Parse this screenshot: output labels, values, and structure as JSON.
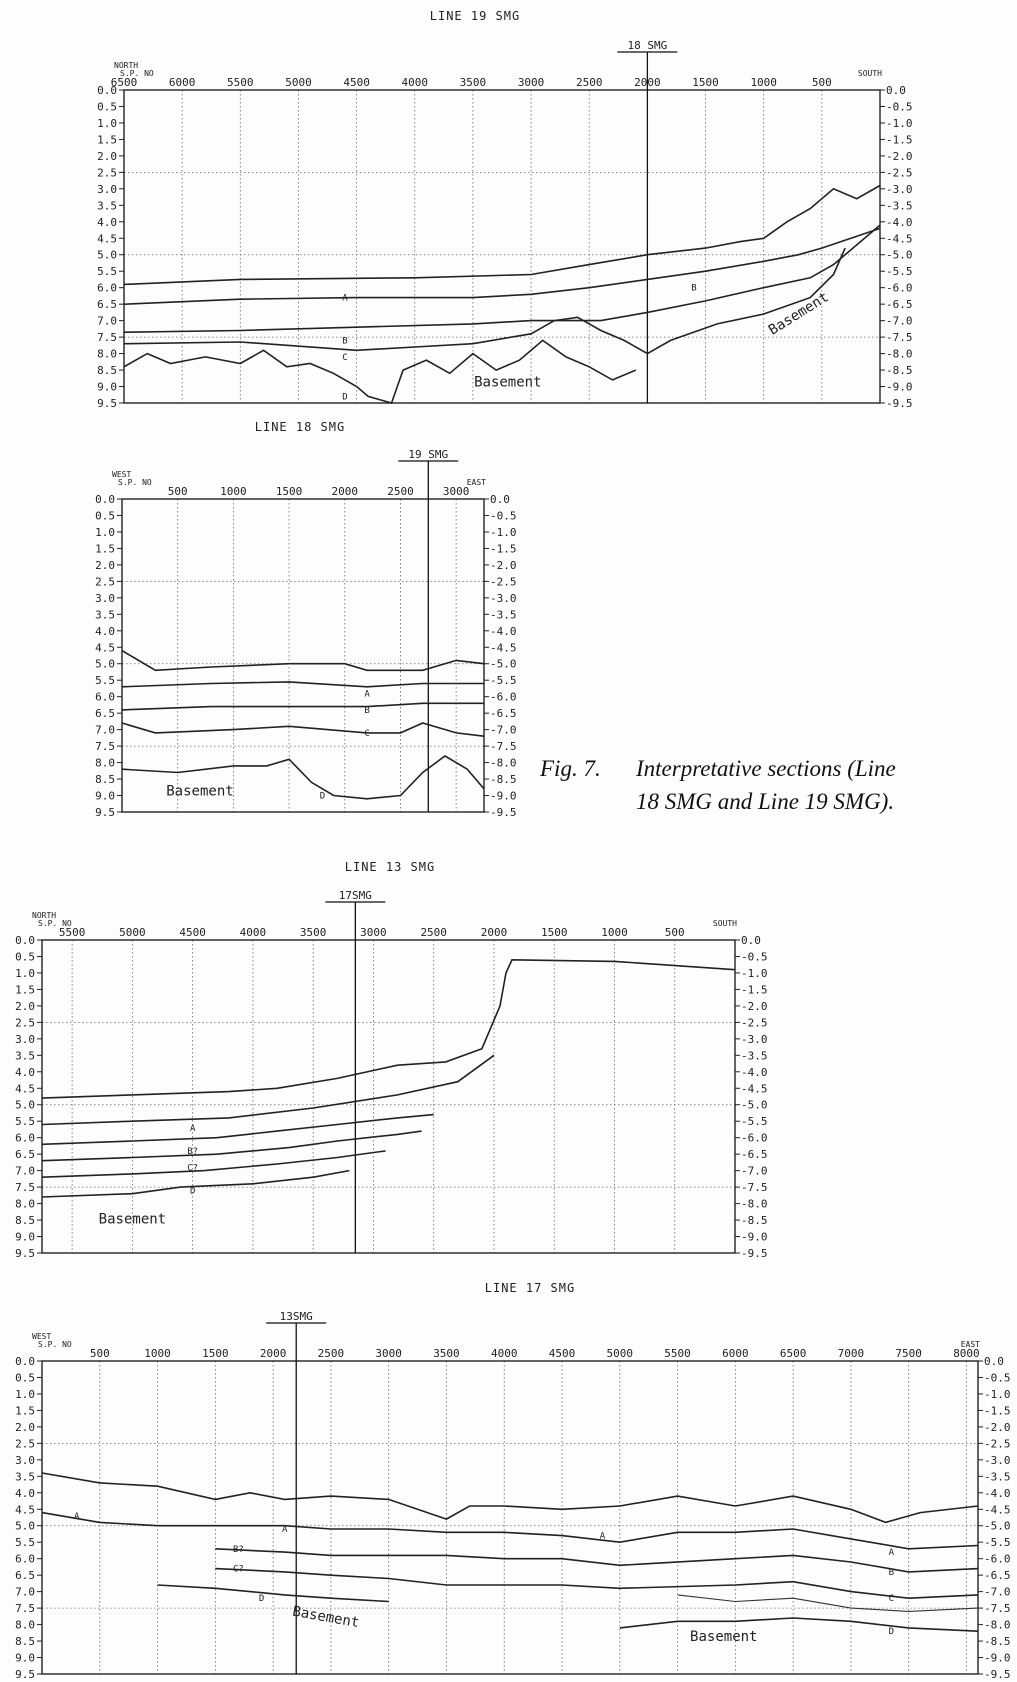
{
  "figure": {
    "caption_num": "Fig. 7.",
    "caption_l1": "Interpretative sections (Line",
    "caption_l2": "18 SMG and Line 19 SMG)."
  },
  "sections": [
    {
      "id": "line19",
      "title": "LINE 19 SMG",
      "left_dir": "NORTH",
      "right_dir": "SOUTH",
      "sp_label": "S.P. NO",
      "cross": "18 SMG",
      "cross_sp": 2000,
      "sp_start": 6500,
      "sp_end": 0,
      "sp_ticks": [
        "6500",
        "6000",
        "5500",
        "5000",
        "4500",
        "4000",
        "3500",
        "3000",
        "2500",
        "2000",
        "1500",
        "1000",
        "500"
      ],
      "sp_values": [
        6500,
        6000,
        5500,
        5000,
        4500,
        4000,
        3500,
        3000,
        2500,
        2000,
        1500,
        1000,
        500
      ],
      "depth_ticks_left": [
        "0.0",
        "0.5",
        "1.0",
        "1.5",
        "2.0",
        "2.5",
        "3.0",
        "3.5",
        "4.0",
        "4.5",
        "5.0",
        "5.5",
        "6.0",
        "6.5",
        "7.0",
        "7.5",
        "8.0",
        "8.5",
        "9.0",
        "9.5"
      ],
      "depth_ticks_right": [
        "0.0",
        "-0.5",
        "-1.0",
        "-1.5",
        "-2.0",
        "-2.5",
        "-3.0",
        "-3.5",
        "-4.0",
        "-4.5",
        "-5.0",
        "-5.5",
        "-6.0",
        "-6.5",
        "-7.0",
        "-7.5",
        "-8.0",
        "-8.5",
        "-9.0",
        "-9.5"
      ],
      "horizon_labels": [
        {
          "text": "A",
          "sp": 4600,
          "depth": 6.3
        },
        {
          "text": "B",
          "sp": 4600,
          "depth": 7.6
        },
        {
          "text": "C",
          "sp": 4600,
          "depth": 8.1
        },
        {
          "text": "D",
          "sp": 4600,
          "depth": 9.3
        },
        {
          "text": "B",
          "sp": 1600,
          "depth": 6.0
        }
      ],
      "basement_labels": [
        {
          "text": "Basement",
          "sp": 3200,
          "depth": 9.0,
          "rot": 0
        },
        {
          "text": "Basement",
          "sp": 680,
          "depth": 6.9,
          "rot": -32
        }
      ]
    },
    {
      "id": "line18",
      "title": "LINE 18 SMG",
      "left_dir": "WEST",
      "right_dir": "EAST",
      "sp_label": "S.P. NO",
      "cross": "19 SMG",
      "cross_sp": 2750,
      "sp_start": 0,
      "sp_end": 3250,
      "sp_ticks": [
        "500",
        "1000",
        "1500",
        "2000",
        "2500",
        "3000"
      ],
      "sp_values": [
        500,
        1000,
        1500,
        2000,
        2500,
        3000
      ],
      "depth_ticks_left": [
        "0.0",
        "0.5",
        "1.0",
        "1.5",
        "2.0",
        "2.5",
        "3.0",
        "3.5",
        "4.0",
        "4.5",
        "5.0",
        "5.5",
        "6.0",
        "6.5",
        "7.0",
        "7.5",
        "8.0",
        "8.5",
        "9.0",
        "9.5"
      ],
      "depth_ticks_right": [
        "0.0",
        "-0.5",
        "-1.0",
        "-1.5",
        "-2.0",
        "-2.5",
        "-3.0",
        "-3.5",
        "-4.0",
        "-4.5",
        "-5.0",
        "-5.5",
        "-6.0",
        "-6.5",
        "-7.0",
        "-7.5",
        "-8.0",
        "-8.5",
        "-9.0",
        "-9.5"
      ],
      "horizon_labels": [
        {
          "text": "A",
          "sp": 2200,
          "depth": 5.9
        },
        {
          "text": "B",
          "sp": 2200,
          "depth": 6.4
        },
        {
          "text": "C",
          "sp": 2200,
          "depth": 7.1
        },
        {
          "text": "D",
          "sp": 1800,
          "depth": 9.0
        }
      ],
      "basement_labels": [
        {
          "text": "Basement",
          "sp": 700,
          "depth": 9.0,
          "rot": 0
        }
      ]
    },
    {
      "id": "line13",
      "title": "LINE 13 SMG",
      "left_dir": "NORTH",
      "right_dir": "SOUTH",
      "sp_label": "S.P. NO",
      "cross": "17SMG",
      "cross_sp": 3150,
      "sp_start": 5750,
      "sp_end": 0,
      "sp_ticks": [
        "5500",
        "5000",
        "4500",
        "4000",
        "3500",
        "3000",
        "2500",
        "2000",
        "1500",
        "1000",
        "500"
      ],
      "sp_values": [
        5500,
        5000,
        4500,
        4000,
        3500,
        3000,
        2500,
        2000,
        1500,
        1000,
        500
      ],
      "depth_ticks_left": [
        "0.0",
        "0.5",
        "1.0",
        "1.5",
        "2.0",
        "2.5",
        "3.0",
        "3.5",
        "4.0",
        "4.5",
        "5.0",
        "5.5",
        "6.0",
        "6.5",
        "7.0",
        "7.5",
        "8.0",
        "8.5",
        "9.0",
        "9.5"
      ],
      "depth_ticks_right": [
        "0.0",
        "-0.5",
        "-1.0",
        "-1.5",
        "-2.0",
        "-2.5",
        "-3.0",
        "-3.5",
        "-4.0",
        "-4.5",
        "-5.0",
        "-5.5",
        "-6.0",
        "-6.5",
        "-7.0",
        "-7.5",
        "-8.0",
        "-8.5",
        "-9.0",
        "-9.5"
      ],
      "horizon_labels": [
        {
          "text": "A",
          "sp": 4500,
          "depth": 5.7
        },
        {
          "text": "B?",
          "sp": 4500,
          "depth": 6.4
        },
        {
          "text": "C?",
          "sp": 4500,
          "depth": 6.9
        },
        {
          "text": "D",
          "sp": 4500,
          "depth": 7.6
        }
      ],
      "basement_labels": [
        {
          "text": "Basement",
          "sp": 5000,
          "depth": 8.6,
          "rot": 0
        }
      ]
    },
    {
      "id": "line17",
      "title": "LINE 17 SMG",
      "left_dir": "WEST",
      "right_dir": "EAST",
      "sp_label": "S.P. NO",
      "cross": "13SMG",
      "cross_sp": 2200,
      "sp_start": 0,
      "sp_end": 8100,
      "sp_ticks": [
        "500",
        "1000",
        "1500",
        "2000",
        "2500",
        "3000",
        "3500",
        "4000",
        "4500",
        "5000",
        "5500",
        "6000",
        "6500",
        "7000",
        "7500",
        "8000"
      ],
      "sp_values": [
        500,
        1000,
        1500,
        2000,
        2500,
        3000,
        3500,
        4000,
        4500,
        5000,
        5500,
        6000,
        6500,
        7000,
        7500,
        8000
      ],
      "depth_ticks_left": [
        "0.0",
        "0.5",
        "1.0",
        "1.5",
        "2.0",
        "2.5",
        "3.0",
        "3.5",
        "4.0",
        "4.5",
        "5.0",
        "5.5",
        "6.0",
        "6.5",
        "7.0",
        "7.5",
        "8.0",
        "8.5",
        "9.0",
        "9.5"
      ],
      "depth_ticks_right": [
        "0.0",
        "-0.5",
        "-1.0",
        "-1.5",
        "-2.0",
        "-2.5",
        "-3.0",
        "-3.5",
        "-4.0",
        "-4.5",
        "-5.0",
        "-5.5",
        "-6.0",
        "-6.5",
        "-7.0",
        "-7.5",
        "-8.0",
        "-8.5",
        "-9.0",
        "-9.5"
      ],
      "horizon_labels": [
        {
          "text": "A",
          "sp": 300,
          "depth": 4.7
        },
        {
          "text": "A",
          "sp": 2100,
          "depth": 5.1
        },
        {
          "text": "B?",
          "sp": 1700,
          "depth": 5.7
        },
        {
          "text": "C?",
          "sp": 1700,
          "depth": 6.3
        },
        {
          "text": "D",
          "sp": 1900,
          "depth": 7.2
        },
        {
          "text": "A",
          "sp": 4850,
          "depth": 5.3
        },
        {
          "text": "A",
          "sp": 7350,
          "depth": 5.8
        },
        {
          "text": "B",
          "sp": 7350,
          "depth": 6.4
        },
        {
          "text": "C",
          "sp": 7350,
          "depth": 7.2
        },
        {
          "text": "D",
          "sp": 7350,
          "depth": 8.2
        }
      ],
      "basement_labels": [
        {
          "text": "Basement",
          "sp": 2450,
          "depth": 7.9,
          "rot": 10
        },
        {
          "text": "Basement",
          "sp": 5900,
          "depth": 8.5,
          "rot": 0
        }
      ]
    }
  ]
}
